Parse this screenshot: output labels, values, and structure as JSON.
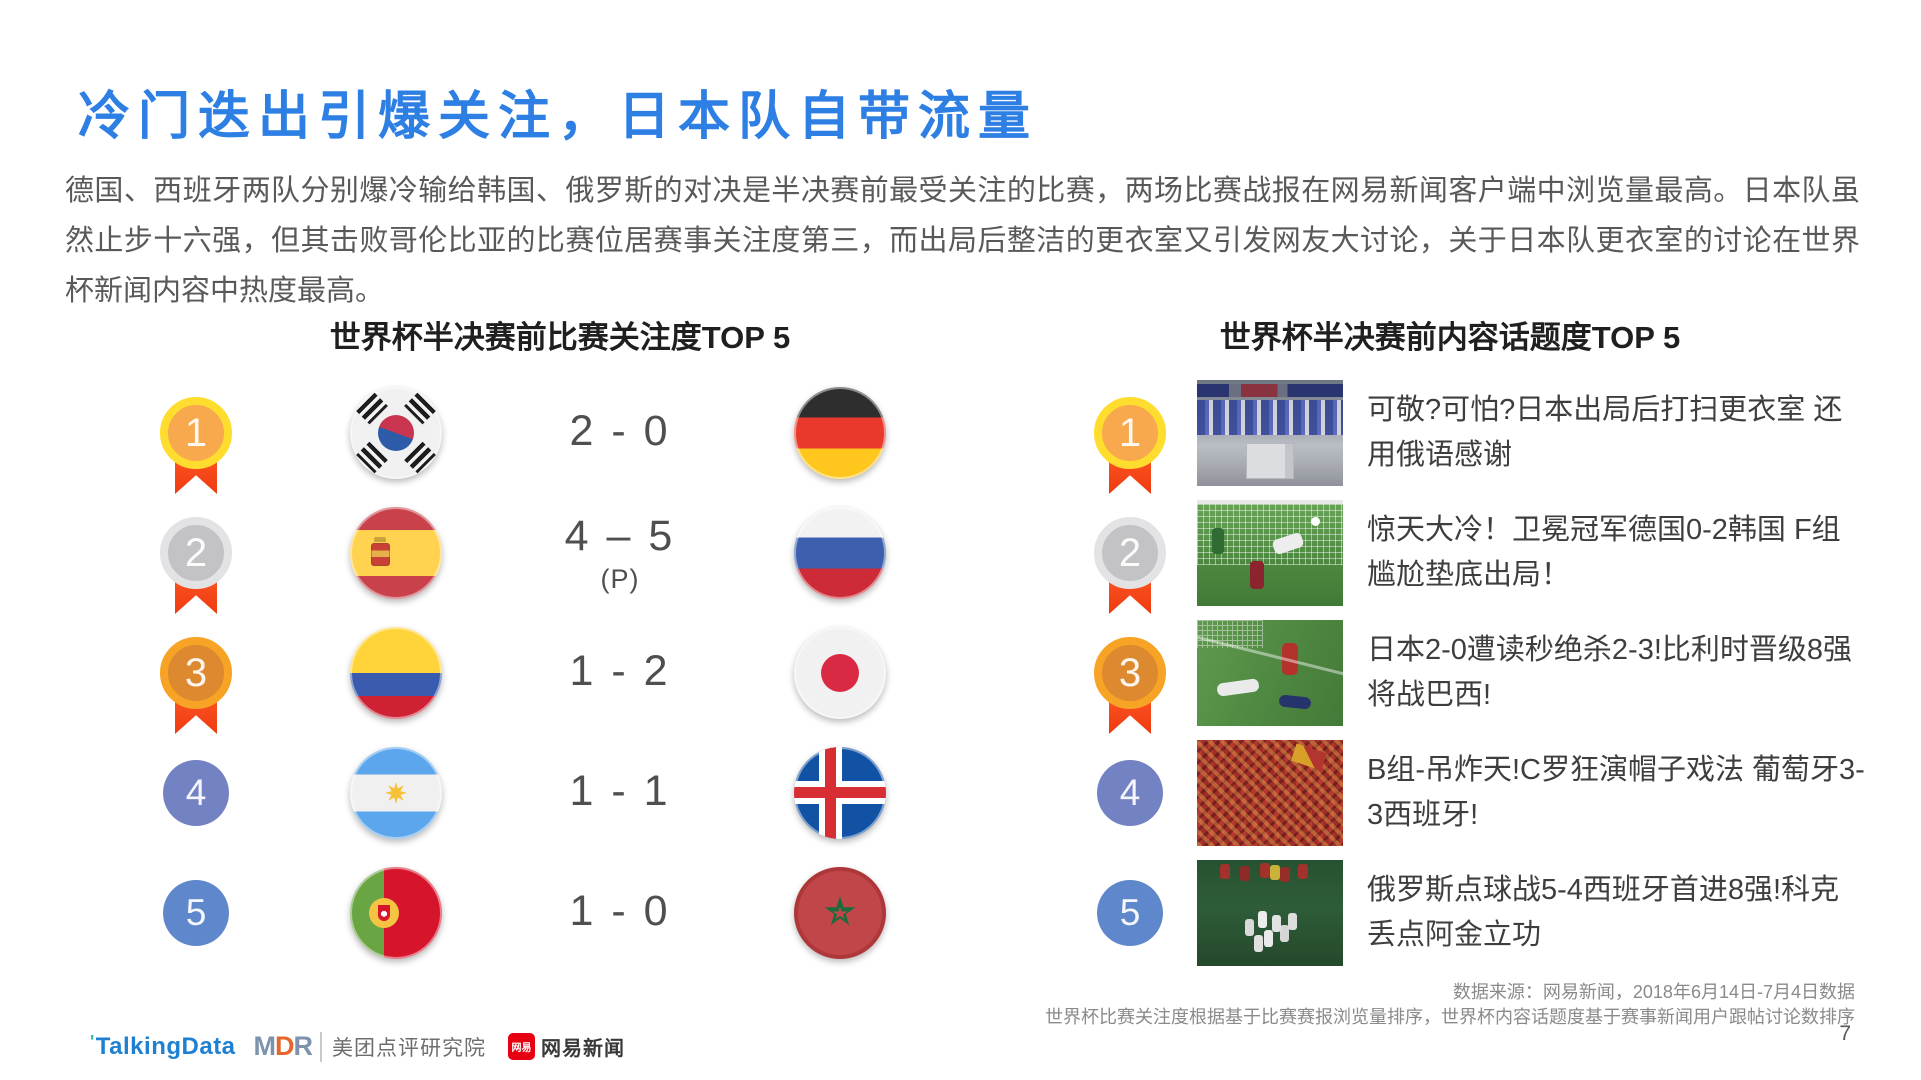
{
  "title": "冷门迭出引爆关注，日本队自带流量",
  "intro": "德国、西班牙两队分别爆冷输给韩国、俄罗斯的对决是半决赛前最受关注的比赛，两场比赛战报在网易新闻客户端中浏览量最高。日本队虽然止步十六强，但其击败哥伦比亚的比赛位居赛事关注度第三，而出局后整洁的更衣室又引发网友大讨论，关于日本队更衣室的讨论在世界杯新闻内容中热度最高。",
  "left": {
    "heading": "世界杯半决赛前比赛关注度TOP 5",
    "rows": [
      {
        "rank": "1",
        "team_a_flag": "south-korea",
        "score": "2 - 0",
        "note": "",
        "team_b_flag": "germany"
      },
      {
        "rank": "2",
        "team_a_flag": "spain",
        "score": "4 – 5",
        "note": "(P)",
        "team_b_flag": "russia"
      },
      {
        "rank": "3",
        "team_a_flag": "colombia",
        "score": "1 - 2",
        "note": "",
        "team_b_flag": "japan"
      },
      {
        "rank": "4",
        "team_a_flag": "argentina",
        "score": "1 - 1",
        "note": "",
        "team_b_flag": "iceland"
      },
      {
        "rank": "5",
        "team_a_flag": "portugal",
        "score": "1 - 0",
        "note": "",
        "team_b_flag": "morocco"
      }
    ]
  },
  "right": {
    "heading": "世界杯半决赛前内容话题度TOP 5",
    "rows": [
      {
        "rank": "1",
        "thumbnail": "japan-locker-room-photo",
        "headline": "可敬?可怕?日本出局后打扫更衣室 还用俄语感谢"
      },
      {
        "rank": "2",
        "thumbnail": "germany-korea-goal-photo",
        "headline": "惊天大冷！卫冕冠军德国0-2韩国 F组尴尬垫底出局！"
      },
      {
        "rank": "3",
        "thumbnail": "japan-belgium-players-photo",
        "headline": "日本2-0遭读秒绝杀2-3!比利时晋级8强将战巴西!"
      },
      {
        "rank": "4",
        "thumbnail": "portugal-spain-fans-photo",
        "headline": "B组-吊炸天!C罗狂演帽子戏法 葡萄牙3-3西班牙!"
      },
      {
        "rank": "5",
        "thumbnail": "russia-spain-celebration-photo",
        "headline": "俄罗斯点球战5-4西班牙首进8强!科克丢点阿金立功"
      }
    ]
  },
  "footer": {
    "source_line1": "数据来源：网易新闻，2018年6月14日-7月4日数据",
    "source_line2": "世界杯比赛关注度根据基于比赛赛报浏览量排序，世界杯内容话题度基于赛事新闻用户跟帖讨论数排序",
    "page_number": "7",
    "logos": {
      "talkingdata_mark": "'",
      "talkingdata": "TalkingData",
      "mdr_m": "M",
      "mdr_d": "D",
      "mdr_r": "R",
      "meituan": "美团点评研究院",
      "netease_badge": "网易",
      "netease": "网易新闻"
    }
  },
  "colors": {
    "title_blue": "#2E7FE4",
    "body_text": "#595959",
    "heading_text": "#1F1F1F",
    "score_text": "#4F4F4F",
    "medal_gold": "#FFDD2E",
    "medal_silver": "#E3E3E5",
    "medal_bronze": "#F7A325",
    "ribbon_red": "#F4471D",
    "rank4_blue": "#7282C2",
    "rank5_blue": "#5F87CB",
    "talkingdata_blue": "#1F80D2",
    "netease_red": "#E60012"
  }
}
